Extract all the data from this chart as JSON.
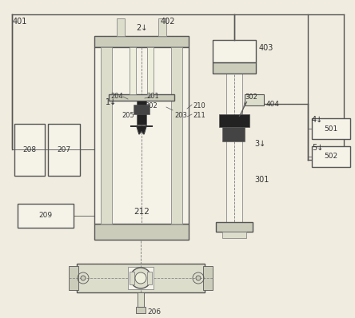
{
  "bg_color": "#f0ece0",
  "line_color": "#555555",
  "line_color2": "#888888",
  "dark": "#222222",
  "gray1": "#ccccbb",
  "gray2": "#ddddcc",
  "gray3": "#eeeedc",
  "white_ish": "#f5f2e8"
}
